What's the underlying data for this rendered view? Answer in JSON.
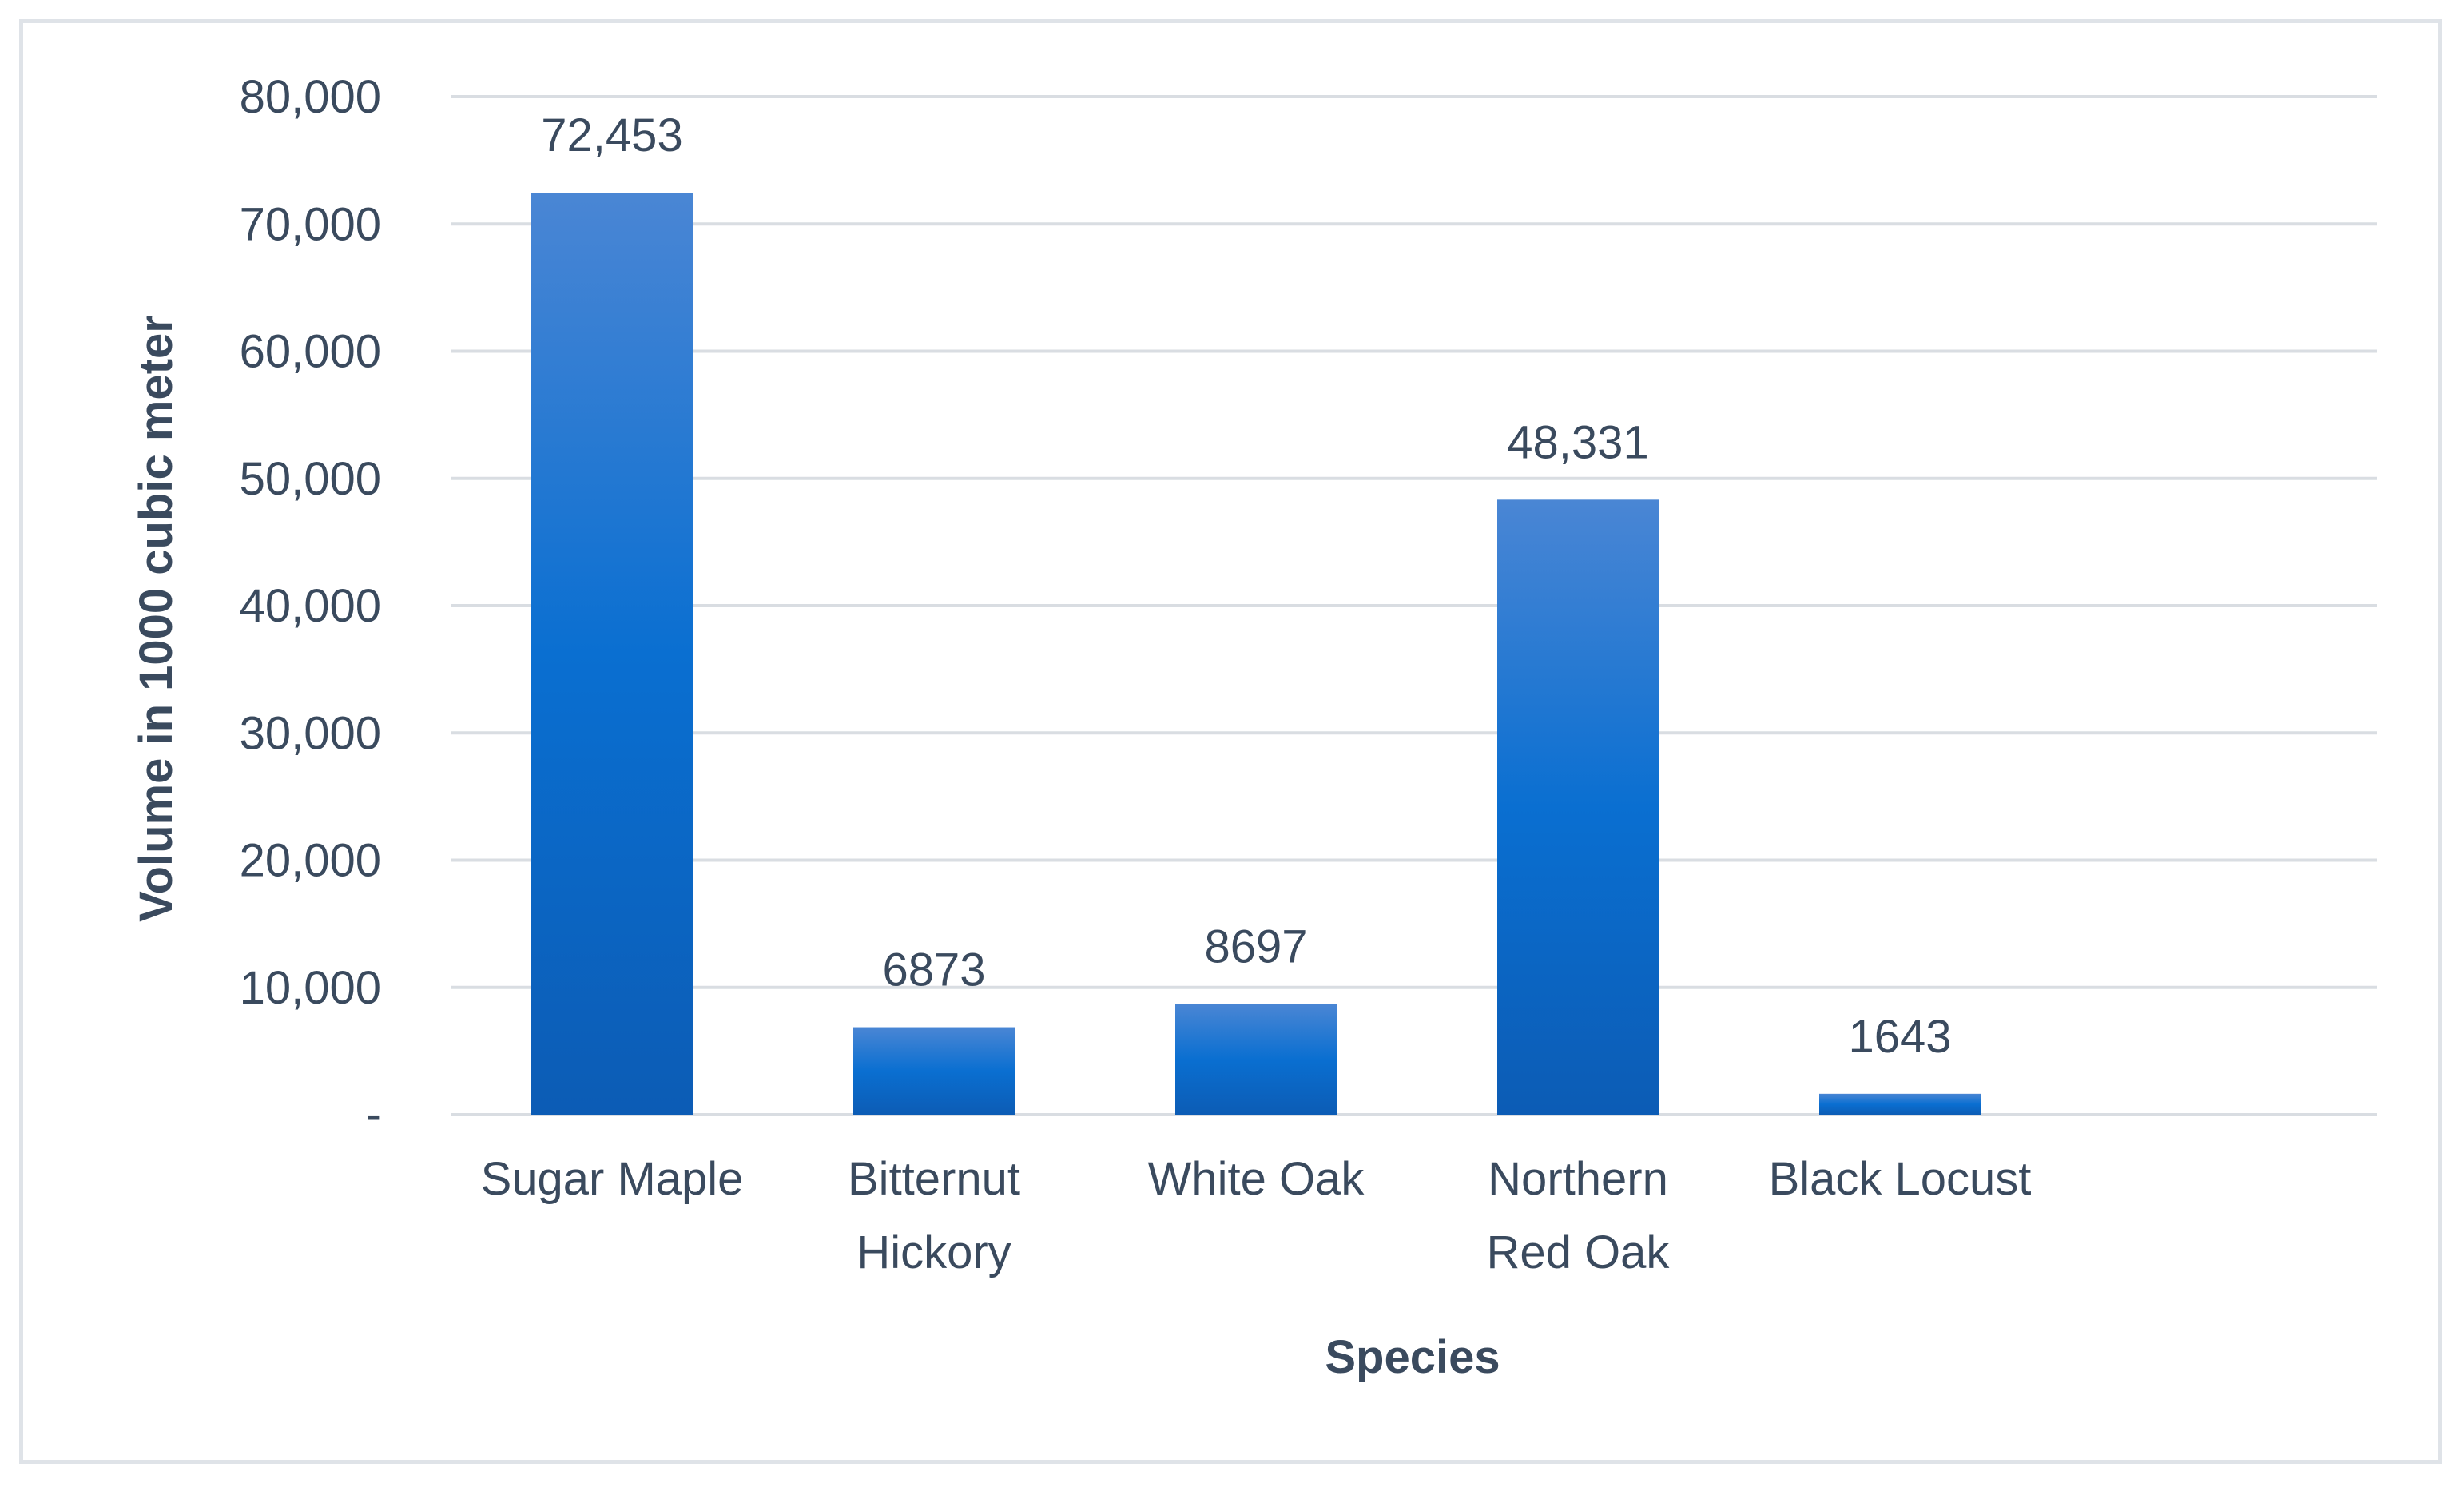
{
  "chart_data": {
    "type": "bar",
    "title": "",
    "xlabel": "Species",
    "ylabel": "Volume in 1000 cubic meter",
    "categories": [
      [
        "Sugar Maple"
      ],
      [
        "Bitternut",
        "Hickory"
      ],
      [
        "White Oak"
      ],
      [
        "Northern",
        "Red Oak"
      ],
      [
        "Black Locust"
      ]
    ],
    "values": [
      72453,
      6873,
      8697,
      48331,
      1643
    ],
    "data_labels": [
      "72,453",
      "6873",
      "8697",
      "48,331",
      "1643"
    ],
    "ylim": [
      0,
      80000
    ],
    "yticks": [
      {
        "value": 0,
        "label": "-"
      },
      {
        "value": 10000,
        "label": "10,000"
      },
      {
        "value": 20000,
        "label": "20,000"
      },
      {
        "value": 30000,
        "label": "30,000"
      },
      {
        "value": 40000,
        "label": "40,000"
      },
      {
        "value": 50000,
        "label": "50,000"
      },
      {
        "value": 60000,
        "label": "60,000"
      },
      {
        "value": 70000,
        "label": "70,000"
      },
      {
        "value": 80000,
        "label": "80,000"
      }
    ],
    "grid": true,
    "legend": "none",
    "colors": {
      "bar_top": "#4a86d4",
      "bar_mid": "#0a6fd1",
      "bar_bottom": "#0c5cb5",
      "text": "#3a4a5e",
      "grid": "#d9dde2"
    }
  }
}
